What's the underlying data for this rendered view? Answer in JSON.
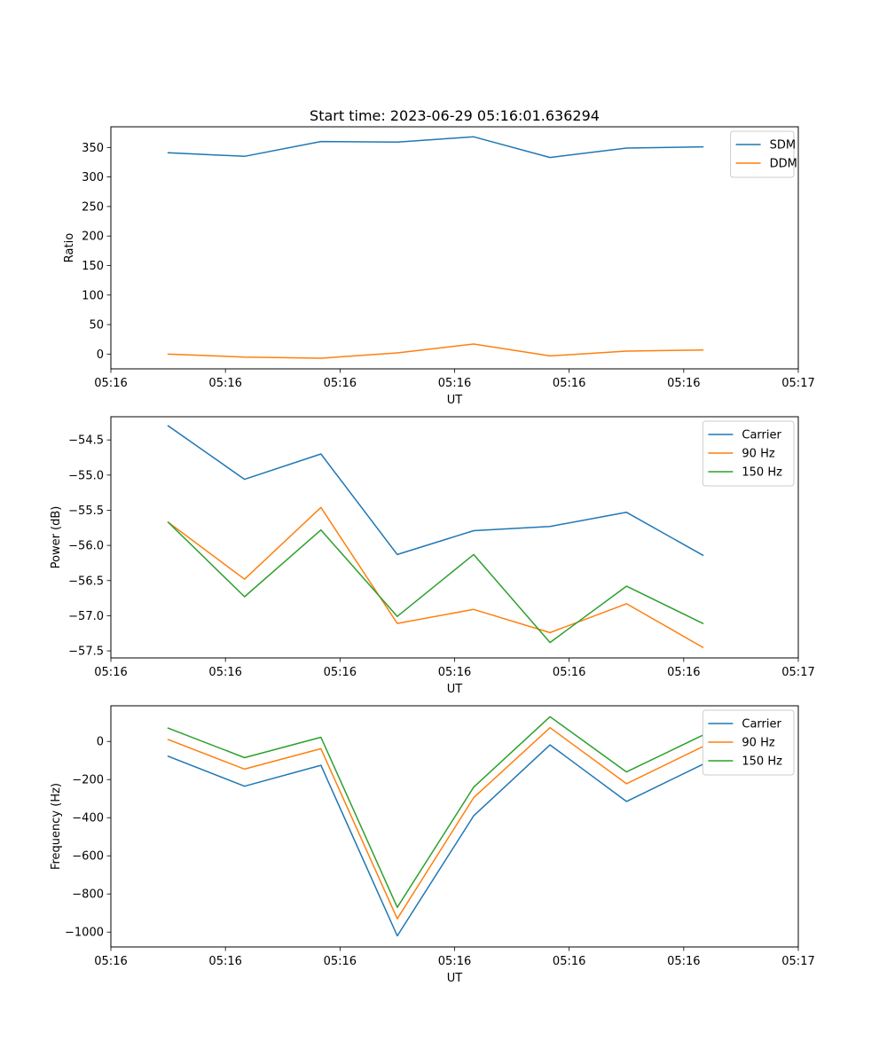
{
  "figure_title": "Start time: 2023-06-29 05:16:01.636294",
  "colors": {
    "blue": "#1f77b4",
    "orange": "#ff7f0e",
    "green": "#2ca02c"
  },
  "chart_data": [
    {
      "type": "line",
      "title": "Start time: 2023-06-29 05:16:01.636294",
      "xlabel": "UT",
      "ylabel": "Ratio",
      "x": [
        1,
        2,
        3,
        4,
        5,
        6,
        7,
        8
      ],
      "xlim": [
        0.25,
        9.25
      ],
      "xticks": [
        0.25,
        1.75,
        3.25,
        4.75,
        6.25,
        7.75,
        9.25
      ],
      "xtick_labels": [
        "05:16",
        "05:16",
        "05:16",
        "05:16",
        "05:16",
        "05:16",
        "05:17"
      ],
      "ylim": [
        -25,
        385
      ],
      "yticks": [
        0,
        50,
        100,
        150,
        200,
        250,
        300,
        350
      ],
      "ytick_labels": [
        "0",
        "50",
        "100",
        "150",
        "200",
        "250",
        "300",
        "350"
      ],
      "grid": false,
      "legend_position": "top-right",
      "series": [
        {
          "name": "SDM",
          "color": "#1f77b4",
          "values": [
            341,
            335,
            360,
            359,
            368,
            333,
            349,
            351
          ]
        },
        {
          "name": "DDM",
          "color": "#ff7f0e",
          "values": [
            0,
            -5,
            -7,
            2,
            17,
            -3,
            5,
            7
          ]
        }
      ]
    },
    {
      "type": "line",
      "title": "",
      "xlabel": "UT",
      "ylabel": "Power (dB)",
      "x": [
        1,
        2,
        3,
        4,
        5,
        6,
        7,
        8
      ],
      "xlim": [
        0.25,
        9.25
      ],
      "xticks": [
        0.25,
        1.75,
        3.25,
        4.75,
        6.25,
        7.75,
        9.25
      ],
      "xtick_labels": [
        "05:16",
        "05:16",
        "05:16",
        "05:16",
        "05:16",
        "05:16",
        "05:17"
      ],
      "ylim": [
        -57.6,
        -54.17
      ],
      "yticks": [
        -54.5,
        -55.0,
        -55.5,
        -56.0,
        -56.5,
        -57.0,
        -57.5
      ],
      "ytick_labels": [
        "−54.5",
        "−55.0",
        "−55.5",
        "−56.0",
        "−56.5",
        "−57.0",
        "−57.5"
      ],
      "grid": false,
      "legend_position": "top-right",
      "series": [
        {
          "name": "Carrier",
          "color": "#1f77b4",
          "values": [
            -54.3,
            -55.06,
            -54.7,
            -56.13,
            -55.79,
            -55.73,
            -55.53,
            -56.14
          ]
        },
        {
          "name": "90 Hz",
          "color": "#ff7f0e",
          "values": [
            -55.67,
            -56.48,
            -55.46,
            -57.11,
            -56.91,
            -57.24,
            -56.83,
            -57.45
          ]
        },
        {
          "name": "150 Hz",
          "color": "#2ca02c",
          "values": [
            -55.67,
            -56.73,
            -55.78,
            -57.01,
            -56.13,
            -57.38,
            -56.58,
            -57.11
          ]
        }
      ]
    },
    {
      "type": "line",
      "title": "",
      "xlabel": "UT",
      "ylabel": "Frequency (Hz)",
      "x": [
        1,
        2,
        3,
        4,
        5,
        6,
        7,
        8
      ],
      "xlim": [
        0.25,
        9.25
      ],
      "xticks": [
        0.25,
        1.75,
        3.25,
        4.75,
        6.25,
        7.75,
        9.25
      ],
      "xtick_labels": [
        "05:16",
        "05:16",
        "05:16",
        "05:16",
        "05:16",
        "05:16",
        "05:17"
      ],
      "ylim": [
        -1078,
        187
      ],
      "yticks": [
        0,
        -200,
        -400,
        -600,
        -800,
        -1000
      ],
      "ytick_labels": [
        "0",
        "−200",
        "−400",
        "−600",
        "−800",
        "−1000"
      ],
      "grid": false,
      "legend_position": "top-right",
      "series": [
        {
          "name": "Carrier",
          "color": "#1f77b4",
          "values": [
            -78,
            -235,
            -125,
            -1020,
            -390,
            -18,
            -315,
            -120
          ]
        },
        {
          "name": "90 Hz",
          "color": "#ff7f0e",
          "values": [
            10,
            -145,
            -38,
            -930,
            -295,
            72,
            -222,
            -27
          ]
        },
        {
          "name": "150 Hz",
          "color": "#2ca02c",
          "values": [
            70,
            -85,
            22,
            -870,
            -240,
            130,
            -160,
            33
          ]
        }
      ]
    }
  ]
}
